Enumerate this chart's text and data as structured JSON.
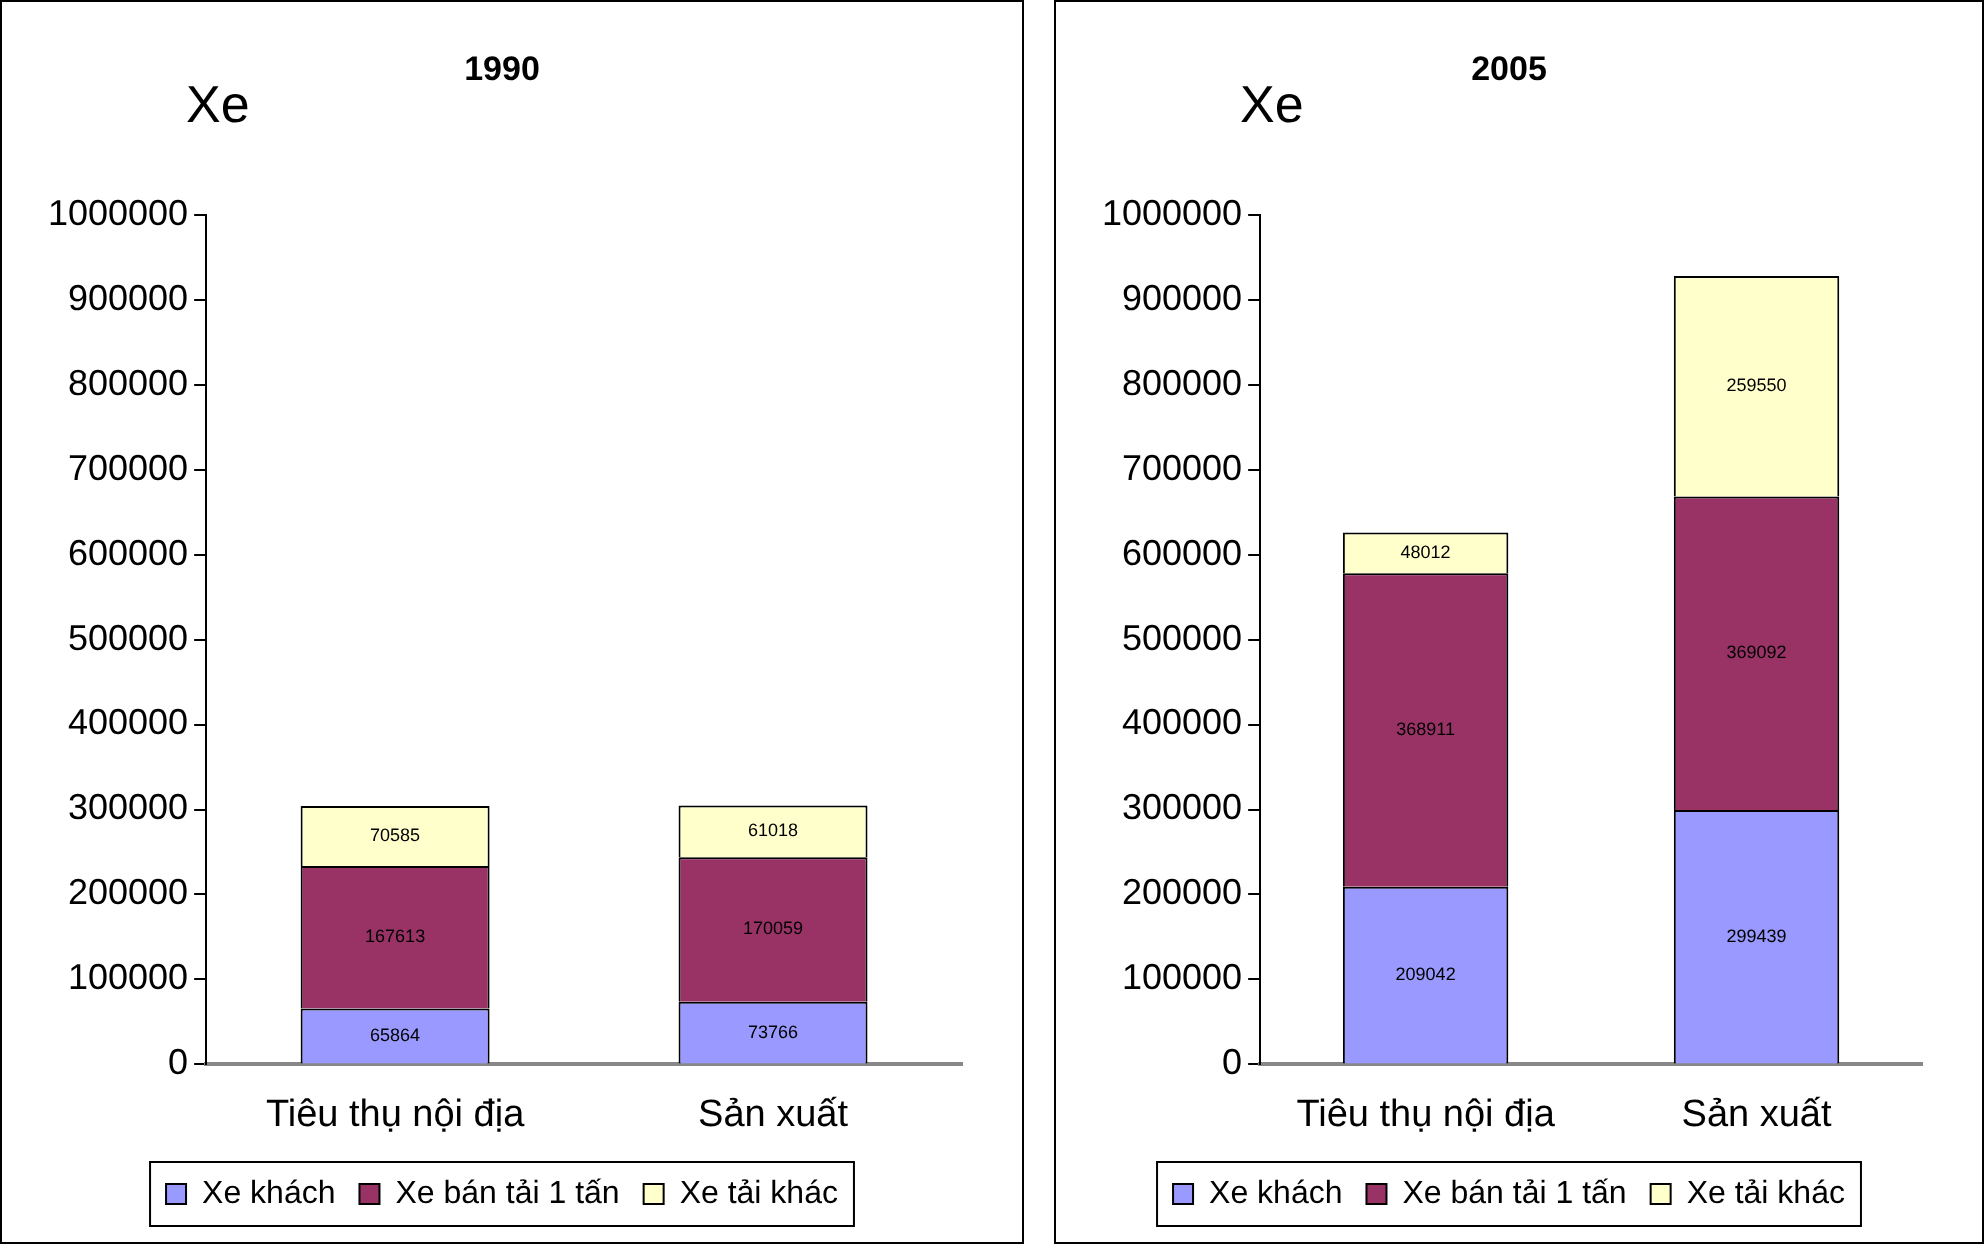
{
  "chart_data": [
    {
      "type": "bar",
      "title": "1990",
      "ylabel": "Xe",
      "categories": [
        "Tiêu thụ nội địa",
        "Sản xuất"
      ],
      "stacked": true,
      "data_labels": true,
      "legend": "bottom",
      "grid": false,
      "ylim": [
        0,
        1000000
      ],
      "yticks": [
        0,
        100000,
        200000,
        300000,
        400000,
        500000,
        600000,
        700000,
        800000,
        900000,
        1000000
      ],
      "series": [
        {
          "name": "Xe khách",
          "color": "#9999ff",
          "values": [
            65864,
            73766
          ]
        },
        {
          "name": "Xe bán tải 1 tấn",
          "color": "#993366",
          "values": [
            167613,
            170059
          ]
        },
        {
          "name": "Xe tải khác",
          "color": "#ffffcc",
          "values": [
            70585,
            61018
          ]
        }
      ]
    },
    {
      "type": "bar",
      "title": "2005",
      "ylabel": "Xe",
      "categories": [
        "Tiêu thụ nội địa",
        "Sản xuất"
      ],
      "stacked": true,
      "data_labels": true,
      "legend": "bottom",
      "grid": false,
      "ylim": [
        0,
        1000000
      ],
      "yticks": [
        0,
        100000,
        200000,
        300000,
        400000,
        500000,
        600000,
        700000,
        800000,
        900000,
        1000000
      ],
      "series": [
        {
          "name": "Xe khách",
          "color": "#9999ff",
          "values": [
            209042,
            299439
          ]
        },
        {
          "name": "Xe bán tải 1 tấn",
          "color": "#993366",
          "values": [
            368911,
            369092
          ]
        },
        {
          "name": "Xe tải khác",
          "color": "#ffffcc",
          "values": [
            48012,
            259550
          ]
        }
      ]
    }
  ]
}
